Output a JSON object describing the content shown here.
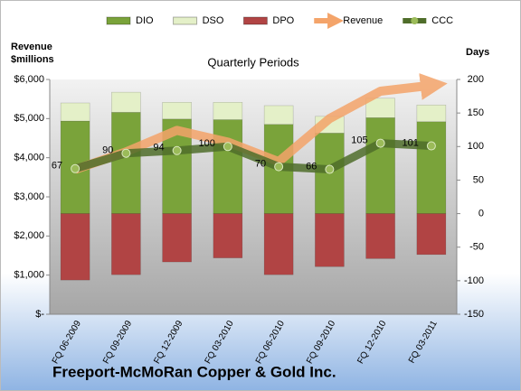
{
  "chart_data": {
    "type": "bar",
    "title": "Quarterly Periods",
    "y_label": "Revenue $millions",
    "y2_label": "Days",
    "company": "Freeport-McMoRan Copper & Gold Inc.",
    "categories": [
      "FQ 06-2009",
      "FQ 09-2009",
      "FQ 12-2009",
      "FQ 03-2010",
      "FQ 06-2010",
      "FQ 09-2010",
      "FQ 12-2010",
      "FQ 03-2011"
    ],
    "series": [
      {
        "name": "DIO",
        "type": "bar",
        "axis": "y2",
        "color": "#7aa33a",
        "values": [
          138,
          151,
          141,
          140,
          133,
          120,
          143,
          137
        ]
      },
      {
        "name": "DSO",
        "type": "bar",
        "axis": "y2",
        "color": "#e4f0c8",
        "values": [
          27,
          30,
          25,
          26,
          28,
          25,
          29,
          25
        ]
      },
      {
        "name": "DPO",
        "type": "bar",
        "axis": "y2",
        "color": "#b14444",
        "values": [
          -99,
          -91,
          -72,
          -66,
          -91,
          -79,
          -67,
          -61
        ]
      },
      {
        "name": "Revenue",
        "type": "line",
        "axis": "y",
        "color": "#f4a46a",
        "values": [
          3700,
          4150,
          4700,
          4400,
          3900,
          5000,
          5700,
          5850
        ]
      },
      {
        "name": "CCC",
        "type": "line",
        "axis": "y2",
        "color": "#4f6d2a",
        "values": [
          67,
          90,
          94,
          100,
          70,
          66,
          105,
          101
        ]
      }
    ],
    "ylim": [
      0,
      6000
    ],
    "yticks": [
      {
        "value": 0,
        "label": "$-"
      },
      {
        "value": 1000,
        "label": "$1,000"
      },
      {
        "value": 2000,
        "label": "$2,000"
      },
      {
        "value": 3000,
        "label": "$3,000"
      },
      {
        "value": 4000,
        "label": "$4,000"
      },
      {
        "value": 5000,
        "label": "$5,000"
      },
      {
        "value": 6000,
        "label": "$6,000"
      }
    ],
    "y2lim": [
      -150,
      200
    ],
    "y2ticks": [
      -150,
      -100,
      -50,
      0,
      50,
      100,
      150,
      200
    ],
    "legend": "top"
  }
}
